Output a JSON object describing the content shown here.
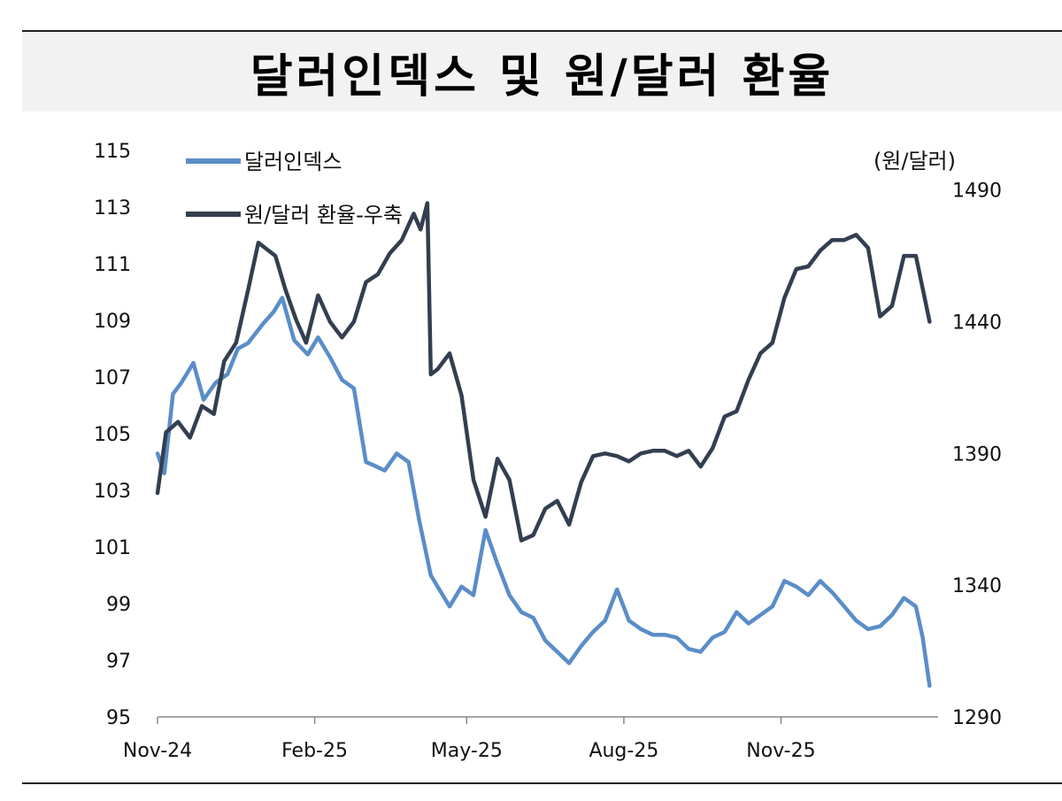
{
  "title": "달러인덱스 및 원/달러 환율",
  "chart_data": {
    "type": "line",
    "x_ticks": [
      "Nov-24",
      "Feb-25",
      "May-25",
      "Aug-25",
      "Nov-25"
    ],
    "x_range": [
      "2024-11-01",
      "2026-02-01"
    ],
    "y_left": {
      "ticks": [
        95,
        97,
        99,
        101,
        103,
        105,
        107,
        109,
        111,
        113,
        115
      ],
      "lim": [
        95,
        115
      ]
    },
    "y_right": {
      "unit_label": "(원/달러)",
      "ticks": [
        1290,
        1340,
        1390,
        1440,
        1490
      ],
      "lim": [
        1290,
        1505
      ]
    },
    "grid": false,
    "legend_position": "top-left",
    "series": [
      {
        "name": "달러인덱스",
        "axis": "left",
        "color": "#5a8dc8",
        "x": [
          "2024-11-01",
          "2024-11-05",
          "2024-11-10",
          "2024-11-15",
          "2024-11-22",
          "2024-11-28",
          "2024-12-05",
          "2024-12-12",
          "2024-12-18",
          "2024-12-24",
          "2025-01-02",
          "2025-01-08",
          "2025-01-13",
          "2025-01-20",
          "2025-01-28",
          "2025-02-03",
          "2025-02-10",
          "2025-02-17",
          "2025-02-24",
          "2025-03-03",
          "2025-03-07",
          "2025-03-14",
          "2025-03-21",
          "2025-03-28",
          "2025-04-03",
          "2025-04-10",
          "2025-04-15",
          "2025-04-21",
          "2025-04-28",
          "2025-05-05",
          "2025-05-12",
          "2025-05-19",
          "2025-05-26",
          "2025-06-02",
          "2025-06-09",
          "2025-06-16",
          "2025-06-23",
          "2025-06-30",
          "2025-07-07",
          "2025-07-14",
          "2025-07-21",
          "2025-07-28",
          "2025-08-04",
          "2025-08-11",
          "2025-08-18",
          "2025-08-25",
          "2025-09-01",
          "2025-09-08",
          "2025-09-15",
          "2025-09-22",
          "2025-09-29",
          "2025-10-06",
          "2025-10-13",
          "2025-10-20",
          "2025-10-27",
          "2025-11-03",
          "2025-11-10",
          "2025-11-17",
          "2025-11-24",
          "2025-12-01",
          "2025-12-08",
          "2025-12-15",
          "2025-12-22",
          "2025-12-29",
          "2026-01-05",
          "2026-01-12",
          "2026-01-19",
          "2026-01-23",
          "2026-01-27"
        ],
        "y": [
          104.3,
          103.6,
          106.4,
          106.8,
          107.5,
          106.2,
          106.8,
          107.1,
          108.0,
          108.2,
          108.9,
          109.3,
          109.8,
          108.3,
          107.8,
          108.4,
          107.7,
          106.9,
          106.6,
          104.0,
          103.9,
          103.7,
          104.3,
          104.0,
          102.0,
          100.0,
          99.5,
          98.9,
          99.6,
          99.3,
          101.6,
          100.4,
          99.3,
          98.7,
          98.5,
          97.7,
          97.3,
          96.9,
          97.5,
          98.0,
          98.4,
          99.5,
          98.4,
          98.1,
          97.9,
          97.9,
          97.8,
          97.4,
          97.3,
          97.8,
          98.0,
          98.7,
          98.3,
          98.6,
          98.9,
          99.8,
          99.6,
          99.3,
          99.8,
          99.4,
          98.9,
          98.4,
          98.1,
          98.2,
          98.6,
          99.2,
          98.9,
          97.8,
          96.1
        ]
      },
      {
        "name": "원/달러 환율-우축",
        "axis": "right",
        "color": "#333f50",
        "x": [
          "2024-11-01",
          "2024-11-06",
          "2024-11-13",
          "2024-11-20",
          "2024-11-27",
          "2024-12-04",
          "2024-12-10",
          "2024-12-17",
          "2024-12-24",
          "2024-12-30",
          "2025-01-03",
          "2025-01-09",
          "2025-01-15",
          "2025-01-21",
          "2025-01-27",
          "2025-02-03",
          "2025-02-10",
          "2025-02-17",
          "2025-02-24",
          "2025-03-03",
          "2025-03-10",
          "2025-03-17",
          "2025-03-24",
          "2025-03-31",
          "2025-04-04",
          "2025-04-08",
          "2025-04-10",
          "2025-04-14",
          "2025-04-21",
          "2025-04-28",
          "2025-05-05",
          "2025-05-12",
          "2025-05-19",
          "2025-05-26",
          "2025-06-02",
          "2025-06-09",
          "2025-06-16",
          "2025-06-23",
          "2025-06-30",
          "2025-07-07",
          "2025-07-14",
          "2025-07-21",
          "2025-07-28",
          "2025-08-04",
          "2025-08-11",
          "2025-08-18",
          "2025-08-25",
          "2025-09-01",
          "2025-09-08",
          "2025-09-15",
          "2025-09-22",
          "2025-09-29",
          "2025-10-06",
          "2025-10-13",
          "2025-10-20",
          "2025-10-27",
          "2025-11-03",
          "2025-11-10",
          "2025-11-17",
          "2025-11-24",
          "2025-12-01",
          "2025-12-08",
          "2025-12-15",
          "2025-12-22",
          "2025-12-29",
          "2026-01-05",
          "2026-01-12",
          "2026-01-19",
          "2026-01-27"
        ],
        "y": [
          1375,
          1398,
          1402,
          1396,
          1408,
          1405,
          1425,
          1432,
          1452,
          1470,
          1468,
          1465,
          1452,
          1441,
          1432,
          1450,
          1440,
          1434,
          1440,
          1455,
          1458,
          1466,
          1471,
          1481,
          1475,
          1485,
          1420,
          1422,
          1428,
          1412,
          1380,
          1366,
          1388,
          1380,
          1357,
          1359,
          1369,
          1372,
          1363,
          1379,
          1389,
          1390,
          1389,
          1387,
          1390,
          1391,
          1391,
          1389,
          1391,
          1385,
          1392,
          1404,
          1406,
          1418,
          1428,
          1432,
          1449,
          1460,
          1461,
          1467,
          1471,
          1471,
          1473,
          1468,
          1442,
          1446,
          1465,
          1465,
          1440
        ]
      }
    ]
  }
}
